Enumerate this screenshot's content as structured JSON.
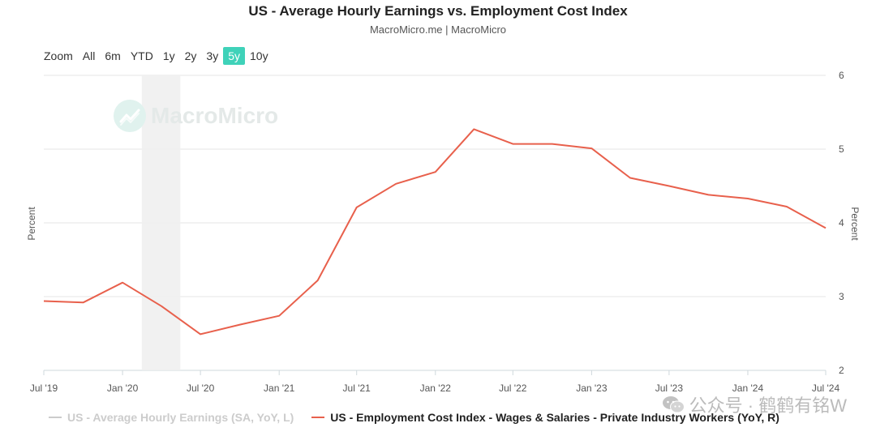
{
  "header": {
    "title": "US - Average Hourly Earnings vs. Employment Cost Index",
    "subtitle": "MacroMicro.me | MacroMicro"
  },
  "range_selector": {
    "label": "Zoom",
    "buttons": [
      "All",
      "6m",
      "YTD",
      "1y",
      "2y",
      "3y",
      "5y",
      "10y"
    ],
    "active": "5y",
    "active_color": "#3fd2b9"
  },
  "watermark": {
    "text": "MacroMicro",
    "icon": "macromicro-logo-icon"
  },
  "overlay": {
    "text": "公众号 · 鹤鹤有铭W",
    "icon": "wechat-icon"
  },
  "chart_data": {
    "type": "line",
    "title": "US - Average Hourly Earnings vs. Employment Cost Index",
    "subtitle": "MacroMicro.me | MacroMicro",
    "ylabel_left": "Percent",
    "ylabel_right": "Percent",
    "x_ticks": [
      "Jul '19",
      "Jan '20",
      "Jul '20",
      "Jan '21",
      "Jul '21",
      "Jan '22",
      "Jul '22",
      "Jan '23",
      "Jul '23",
      "Jan '24",
      "Jul '24"
    ],
    "y_ticks_right": [
      2,
      3,
      4,
      5,
      6
    ],
    "ylim_right": [
      2,
      6
    ],
    "grid": true,
    "recession_band": [
      "2020-02-15",
      "2020-05-15"
    ],
    "legend_position": "bottom",
    "series": [
      {
        "name": "US - Average Hourly Earnings (SA, YoY, L)",
        "axis": "left",
        "color": "#cccccc",
        "visible": false,
        "points": []
      },
      {
        "name": "US - Employment Cost Index - Wages & Salaries - Private Industry Workers (YoY, R)",
        "axis": "right",
        "color": "#e8604c",
        "visible": true,
        "points": [
          [
            "2019-07-01",
            2.94
          ],
          [
            "2019-10-01",
            2.92
          ],
          [
            "2020-01-01",
            3.19
          ],
          [
            "2020-04-01",
            2.87
          ],
          [
            "2020-07-01",
            2.49
          ],
          [
            "2020-10-01",
            2.62
          ],
          [
            "2021-01-01",
            2.74
          ],
          [
            "2021-04-01",
            3.22
          ],
          [
            "2021-07-01",
            4.21
          ],
          [
            "2021-10-01",
            4.53
          ],
          [
            "2022-01-01",
            4.69
          ],
          [
            "2022-04-01",
            5.27
          ],
          [
            "2022-07-01",
            5.07
          ],
          [
            "2022-10-01",
            5.07
          ],
          [
            "2023-01-01",
            5.01
          ],
          [
            "2023-04-01",
            4.61
          ],
          [
            "2023-07-01",
            4.5
          ],
          [
            "2023-10-01",
            4.38
          ],
          [
            "2024-01-01",
            4.33
          ],
          [
            "2024-04-01",
            4.22
          ],
          [
            "2024-07-01",
            3.93
          ]
        ]
      }
    ]
  }
}
